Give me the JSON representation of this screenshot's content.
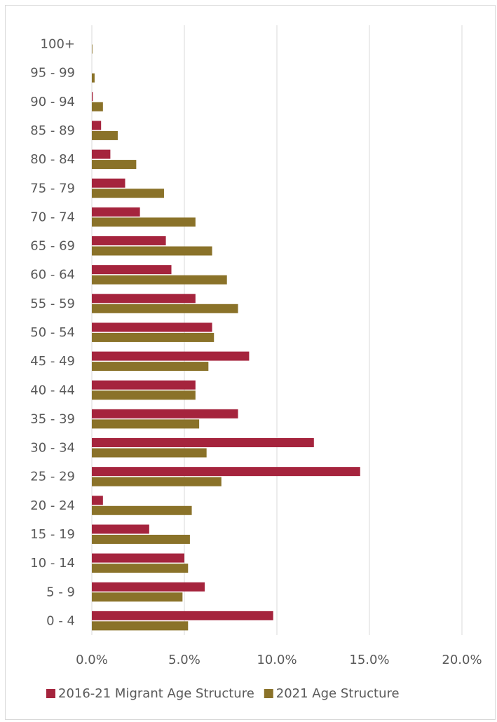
{
  "chart_data": {
    "type": "bar",
    "orientation": "horizontal",
    "categories": [
      "0 - 4",
      "5 - 9",
      "10 - 14",
      "15 - 19",
      "20 - 24",
      "25 - 29",
      "30 - 34",
      "35 - 39",
      "40 - 44",
      "45 - 49",
      "50 - 54",
      "55 - 59",
      "60 - 64",
      "65 - 69",
      "70 - 74",
      "75 - 79",
      "80 - 84",
      "85 - 89",
      "90 - 94",
      "95 - 99",
      "100+"
    ],
    "series": [
      {
        "name": "2016-21 Migrant Age Structure",
        "color": "#a5243d",
        "values": [
          9.8,
          6.1,
          5.0,
          3.1,
          0.6,
          14.5,
          12.0,
          7.9,
          5.6,
          8.5,
          6.5,
          5.6,
          4.3,
          4.0,
          2.6,
          1.8,
          1.0,
          0.5,
          0.05,
          0.0,
          0.0
        ]
      },
      {
        "name": "2021 Age Structure",
        "color": "#8a7229",
        "values": [
          5.2,
          4.9,
          5.2,
          5.3,
          5.4,
          7.0,
          6.2,
          5.8,
          5.6,
          6.3,
          6.6,
          7.9,
          7.3,
          6.5,
          5.6,
          3.9,
          2.4,
          1.4,
          0.6,
          0.15,
          0.03
        ]
      }
    ],
    "xlim": [
      0,
      20
    ],
    "x_ticks": [
      "0.0%",
      "5.0%",
      "10.0%",
      "15.0%",
      "20.0%"
    ],
    "x_tick_values": [
      0,
      5,
      10,
      15,
      20
    ],
    "grid": "vertical",
    "legend_position": "bottom"
  }
}
